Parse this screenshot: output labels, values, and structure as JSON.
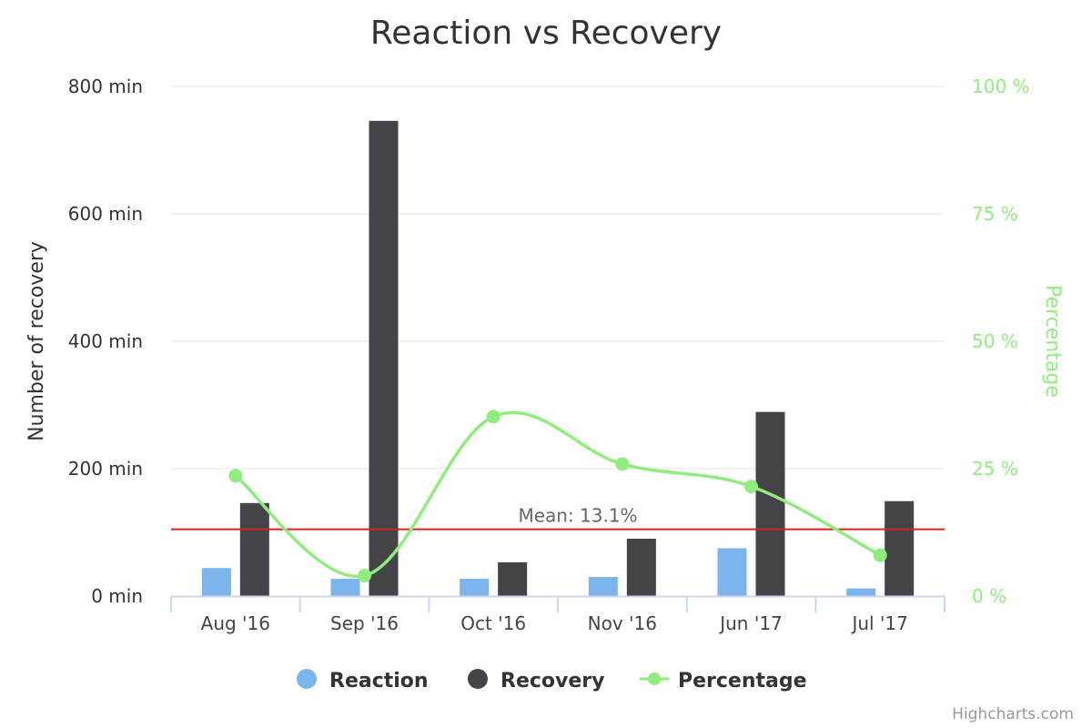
{
  "chart_data": {
    "type": "bar",
    "title": "Reaction vs Recovery",
    "categories": [
      "Aug '16",
      "Sep '16",
      "Oct '16",
      "Nov '16",
      "Jun '17",
      "Jul '17"
    ],
    "series": [
      {
        "name": "Reaction",
        "type": "bar",
        "axis": "left",
        "color": "#7cb5ec",
        "values": [
          44,
          27,
          27,
          30,
          75,
          12
        ]
      },
      {
        "name": "Recovery",
        "type": "bar",
        "axis": "left",
        "color": "#434348",
        "values": [
          146,
          746,
          53,
          90,
          289,
          149
        ]
      },
      {
        "name": "Percentage",
        "type": "line",
        "axis": "right",
        "color": "#90ed7d",
        "smooth": true,
        "values": [
          23.6,
          4,
          35.2,
          25.9,
          21.5,
          8
        ]
      }
    ],
    "y_left": {
      "label": "Number of recovery",
      "min": 0,
      "max": 800,
      "ticks": [
        0,
        200,
        400,
        600,
        800
      ],
      "tick_labels": [
        "0 min",
        "200 min",
        "400 min",
        "600 min",
        "800 min"
      ],
      "color": "#333333"
    },
    "y_right": {
      "label": "Percentage",
      "min": 0,
      "max": 100,
      "ticks": [
        0,
        25,
        50,
        75,
        100
      ],
      "tick_labels": [
        "0 %",
        "25 %",
        "50 %",
        "75 %",
        "100 %"
      ],
      "color": "#90ed7d"
    },
    "plot_line": {
      "label": "Mean: 13.1%",
      "value": 13.1,
      "axis": "right",
      "color": "#e0201d"
    },
    "grid": true,
    "legend_position": "bottom-center",
    "credits": "Highcharts.com"
  }
}
